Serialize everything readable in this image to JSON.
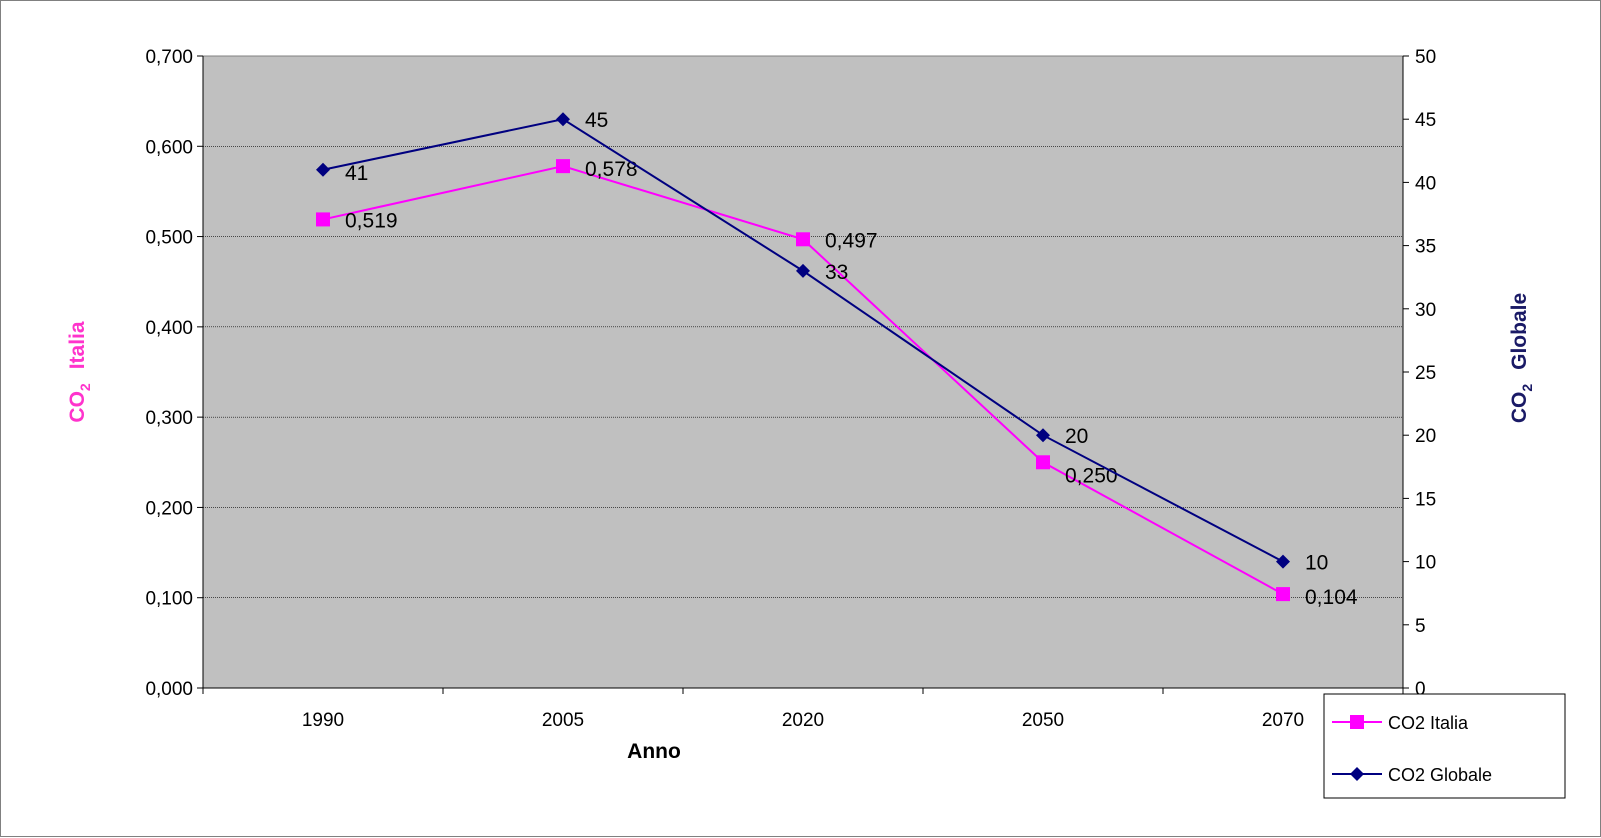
{
  "chart_data": {
    "type": "line",
    "categories": [
      "1990",
      "2005",
      "2020",
      "2050",
      "2070"
    ],
    "series": [
      {
        "name": "CO2 Italia",
        "axis": "left",
        "color": "#ff00ff",
        "marker": "square",
        "values": [
          0.519,
          0.578,
          0.497,
          0.25,
          0.104
        ],
        "labels": [
          "0,519",
          "0,578",
          "0,497",
          "0,250",
          "0,104"
        ]
      },
      {
        "name": "CO2 Globale",
        "axis": "right",
        "color": "#000080",
        "marker": "diamond",
        "values": [
          41,
          45,
          33,
          20,
          10
        ],
        "labels": [
          "41",
          "45",
          "33",
          "20",
          "10"
        ]
      }
    ],
    "xlabel": "Anno",
    "ylabel_left": {
      "main": "CO",
      "sub": "2",
      "rest": "Italia",
      "color": "#ff33cc"
    },
    "ylabel_right": {
      "main": "CO",
      "sub": "2",
      "rest": "Globale",
      "color": "#1a1a66"
    },
    "ylim_left": [
      0,
      0.7
    ],
    "yticks_left": [
      "0,000",
      "0,100",
      "0,200",
      "0,300",
      "0,400",
      "0,500",
      "0,600",
      "0,700"
    ],
    "ylim_right": [
      0,
      50
    ],
    "yticks_right": [
      "0",
      "5",
      "10",
      "15",
      "20",
      "25",
      "30",
      "35",
      "40",
      "45",
      "50"
    ],
    "grid": true,
    "plot_background": "#c0c0c0",
    "legend_position": "bottom-right"
  }
}
